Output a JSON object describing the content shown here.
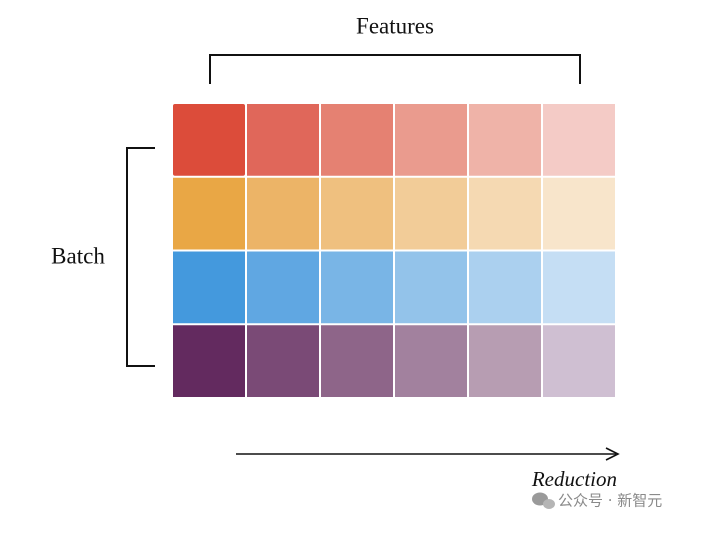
{
  "features_label": "Features",
  "batch_label": "Batch",
  "reduction_label": "Reduction",
  "watermark": "公众号 · 新智元"
}
